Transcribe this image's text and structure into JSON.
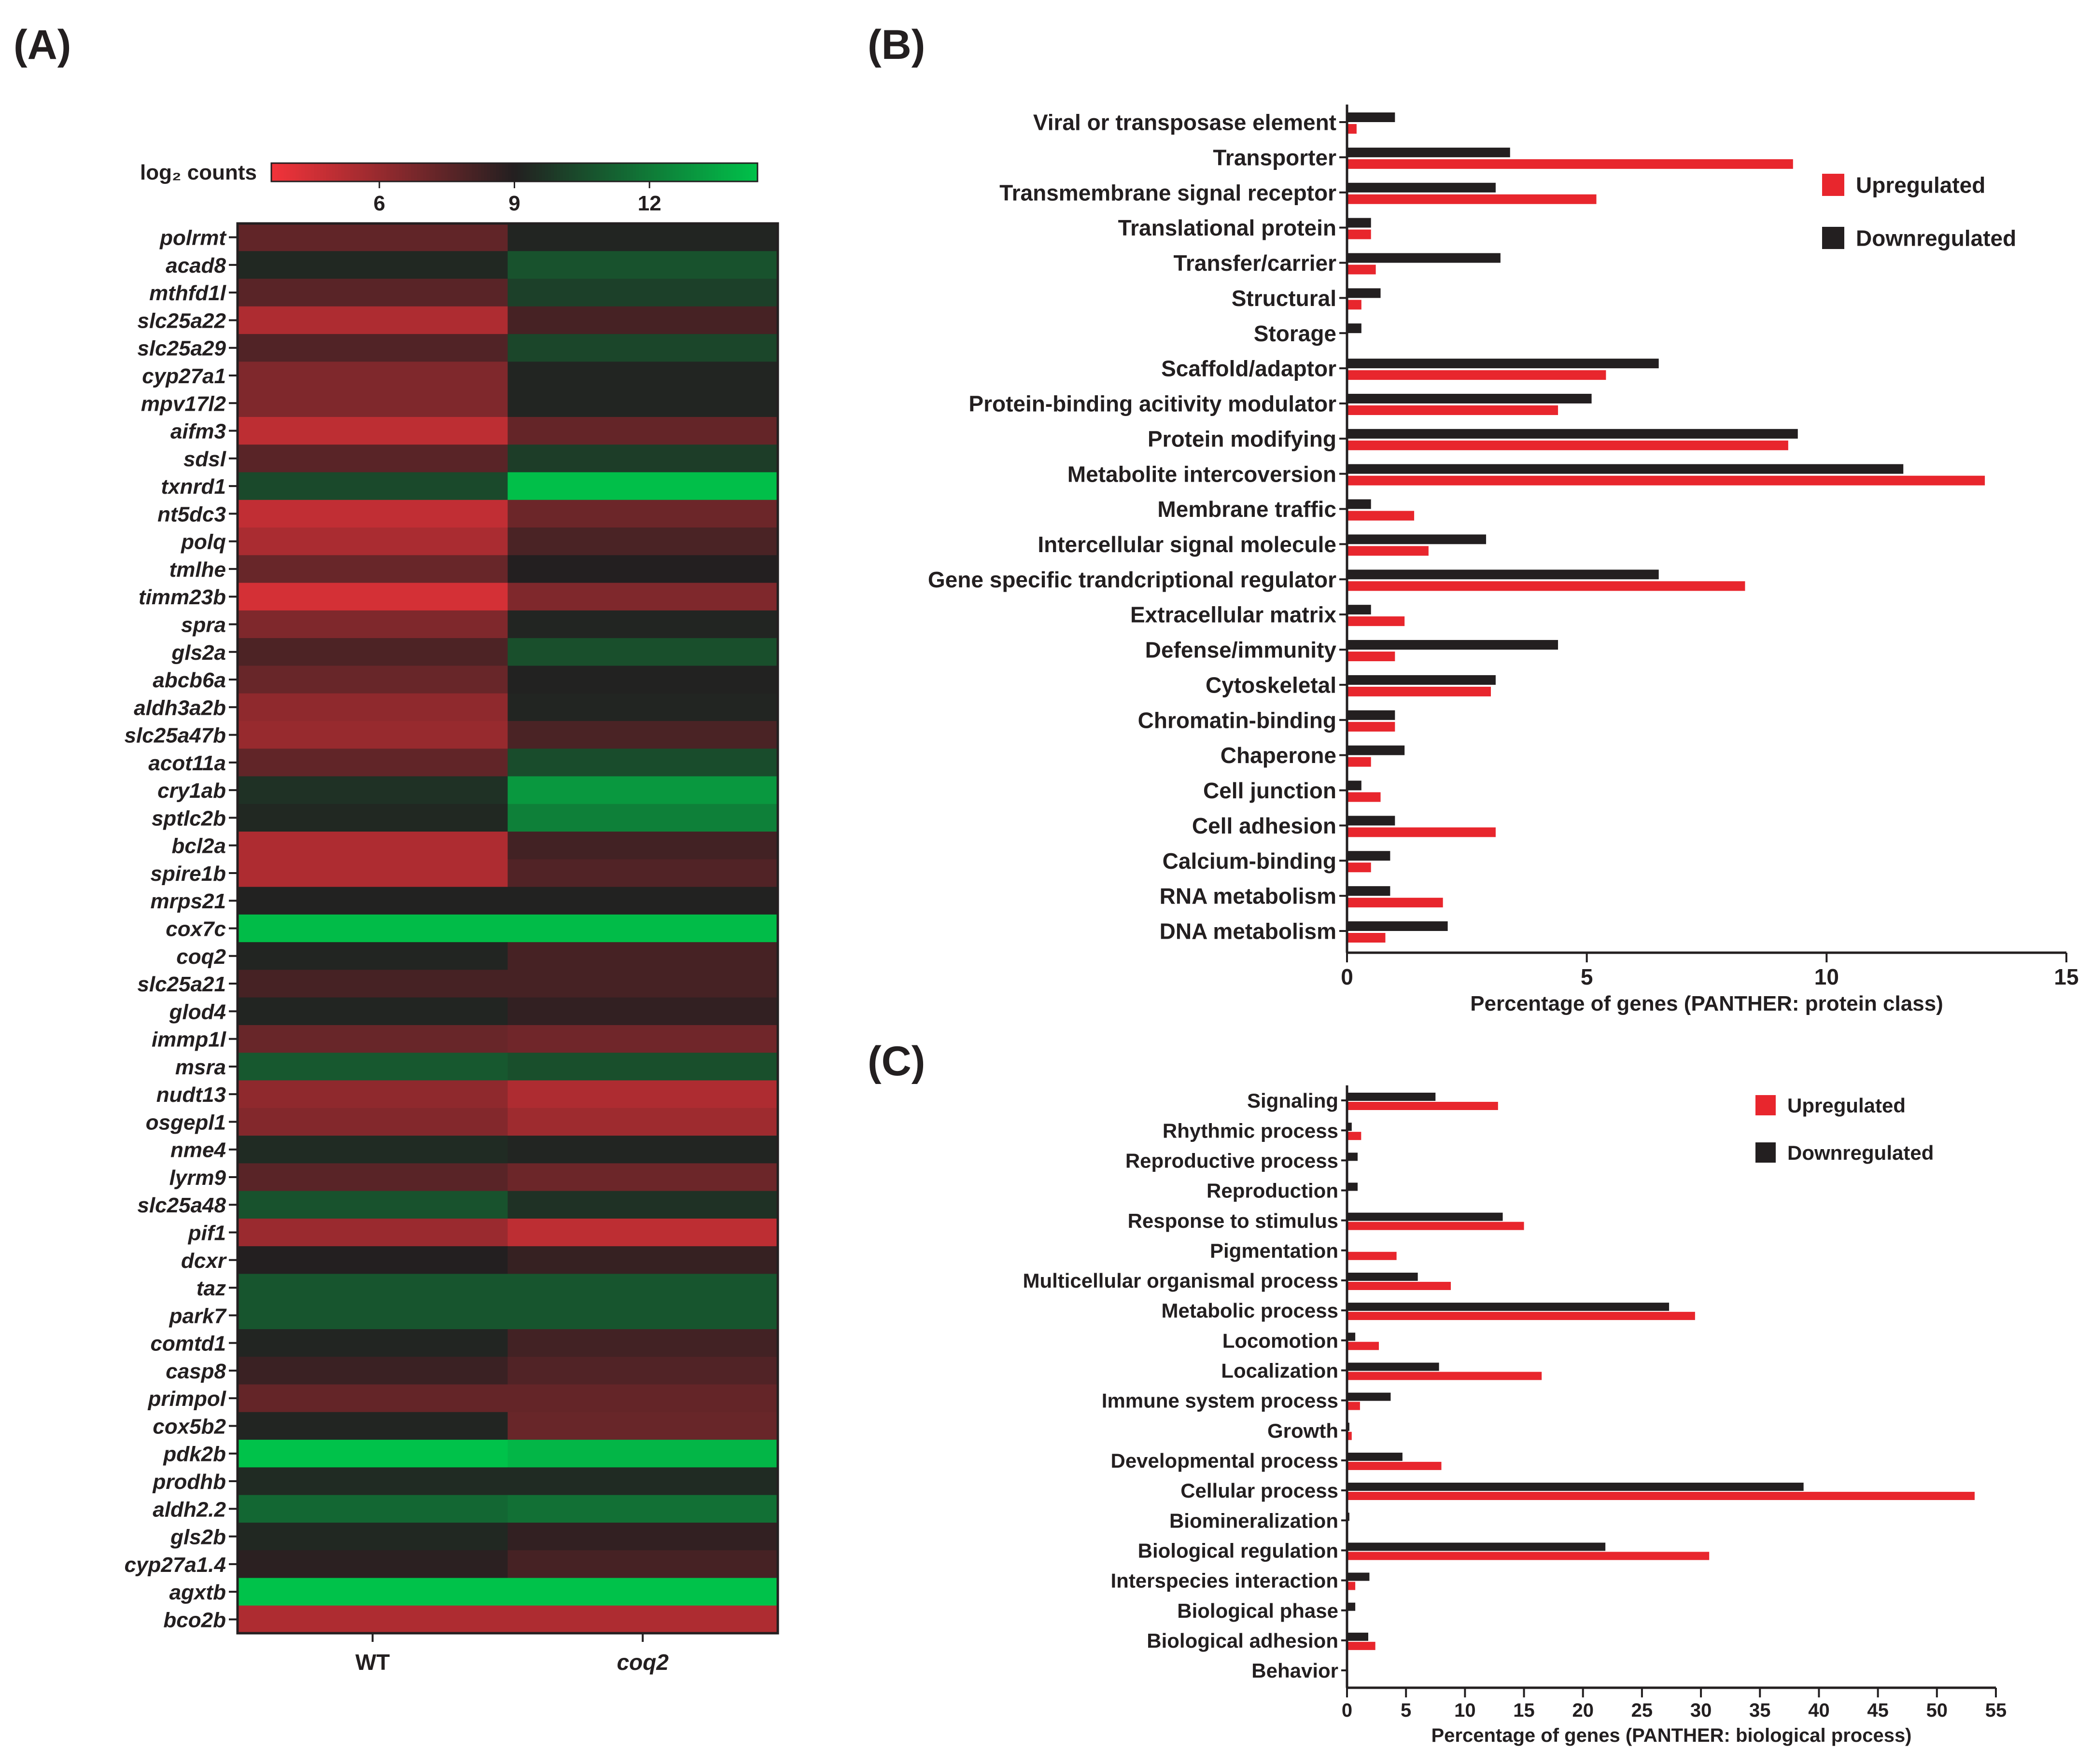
{
  "panel_labels": {
    "a": "(A)",
    "b": "(B)",
    "c": "(C)"
  },
  "colors": {
    "up": "#e8262d",
    "down": "#231f20",
    "axis": "#231f20",
    "low": "#f3333a",
    "mid": "#231f20",
    "high": "#00c24a"
  },
  "chart_data": [
    {
      "id": "A",
      "type": "heatmap",
      "colorbar_title": "log₂ counts",
      "colorbar_range": [
        3.6,
        14.4
      ],
      "colorbar_ticks": [
        "6",
        "9",
        "12"
      ],
      "colorbar_tick_values": [
        6,
        9,
        12
      ],
      "columns": [
        "WT",
        "coq2"
      ],
      "rows": [
        "polrmt",
        "acad8",
        "mthfd1l",
        "slc25a22",
        "slc25a29",
        "cyp27a1",
        "mpv17l2",
        "aifm3",
        "sdsl",
        "txnrd1",
        "nt5dc3",
        "polq",
        "tmlhe",
        "timm23b",
        "spra",
        "gls2a",
        "abcb6a",
        "aldh3a2b",
        "slc25a47b",
        "acot11a",
        "cry1ab",
        "sptlc2b",
        "bcl2a",
        "spire1b",
        "mrps21",
        "cox7c",
        "coq2",
        "slc25a21",
        "glod4",
        "immp1l",
        "msra",
        "nudt13",
        "osgepl1",
        "nme4",
        "lyrm9",
        "slc25a48",
        "pif1",
        "dcxr",
        "taz",
        "park7",
        "comtd1",
        "casp8",
        "primpol",
        "cox5b2",
        "pdk2b",
        "prodhb",
        "aldh2.2",
        "gls2b",
        "cyp27a1.4",
        "agxtb",
        "bco2b"
      ],
      "values": [
        [
          7.4,
          9.2
        ],
        [
          9.3,
          10.7
        ],
        [
          7.6,
          10.1
        ],
        [
          5.4,
          8.1
        ],
        [
          7.8,
          10.3
        ],
        [
          6.6,
          9.2
        ],
        [
          6.6,
          9.2
        ],
        [
          5.0,
          7.3
        ],
        [
          7.6,
          10.0
        ],
        [
          10.4,
          14.3
        ],
        [
          4.9,
          7.1
        ],
        [
          5.5,
          8.0
        ],
        [
          7.2,
          9.0
        ],
        [
          4.4,
          6.6
        ],
        [
          6.6,
          9.2
        ],
        [
          7.9,
          10.6
        ],
        [
          7.2,
          9.1
        ],
        [
          6.2,
          9.2
        ],
        [
          6.0,
          8.0
        ],
        [
          7.4,
          10.5
        ],
        [
          9.6,
          13.0
        ],
        [
          9.3,
          12.2
        ],
        [
          5.4,
          8.2
        ],
        [
          5.4,
          7.8
        ],
        [
          9.1,
          9.1
        ],
        [
          14.2,
          14.2
        ],
        [
          9.2,
          8.1
        ],
        [
          8.1,
          8.1
        ],
        [
          9.2,
          8.6
        ],
        [
          7.2,
          7.0
        ],
        [
          10.9,
          10.6
        ],
        [
          6.2,
          5.4
        ],
        [
          6.5,
          5.8
        ],
        [
          9.4,
          9.2
        ],
        [
          7.6,
          7.1
        ],
        [
          10.7,
          9.6
        ],
        [
          5.9,
          5.0
        ],
        [
          9.0,
          8.5
        ],
        [
          10.8,
          10.8
        ],
        [
          10.8,
          10.8
        ],
        [
          9.2,
          8.2
        ],
        [
          8.4,
          7.8
        ],
        [
          7.3,
          7.3
        ],
        [
          9.2,
          7.2
        ],
        [
          14.6,
          14.0
        ],
        [
          9.4,
          9.4
        ],
        [
          11.4,
          11.7
        ],
        [
          9.3,
          8.6
        ],
        [
          8.8,
          8.1
        ],
        [
          14.6,
          14.6
        ],
        [
          5.4,
          5.4
        ]
      ]
    },
    {
      "id": "B",
      "type": "bar",
      "orientation": "horizontal",
      "categories": [
        "Viral or transposase element",
        "Transporter",
        "Transmembrane signal receptor",
        "Translational protein",
        "Transfer/carrier",
        "Structural",
        "Storage",
        "Scaffold/adaptor",
        "Protein-binding acitivity modulator",
        "Protein modifying",
        "Metabolite intercoversion",
        "Membrane traffic",
        "Intercellular signal molecule",
        "Gene specific trandcriptional regulator",
        "Extracellular matrix",
        "Defense/immunity",
        "Cytoskeletal",
        "Chromatin-binding",
        "Chaperone",
        "Cell junction",
        "Cell adhesion",
        "Calcium-binding",
        "RNA metabolism",
        "DNA metabolism"
      ],
      "series": [
        {
          "name": "Upregulated",
          "values": [
            0.2,
            9.3,
            5.2,
            0.5,
            0.6,
            0.3,
            0,
            5.4,
            4.4,
            9.2,
            13.3,
            1.4,
            1.7,
            8.3,
            1.2,
            1.0,
            3.0,
            1.0,
            0.5,
            0.7,
            3.1,
            0.5,
            2.0,
            0.8
          ]
        },
        {
          "name": "Downregulated",
          "values": [
            1.0,
            3.4,
            3.1,
            0.5,
            3.2,
            0.7,
            0.3,
            6.5,
            5.1,
            9.4,
            11.6,
            0.5,
            2.9,
            6.5,
            0.5,
            4.4,
            3.1,
            1.0,
            1.2,
            0.3,
            1.0,
            0.9,
            0.9,
            2.1
          ]
        }
      ],
      "xlim": [
        0,
        15
      ],
      "xticks": [
        "0",
        "5",
        "10",
        "15"
      ],
      "xlabel": "Percentage of genes (PANTHER: protein class)",
      "legend": [
        "Upregulated",
        "Downregulated"
      ]
    },
    {
      "id": "C",
      "type": "bar",
      "orientation": "horizontal",
      "categories": [
        "Signaling",
        "Rhythmic process",
        "Reproductive process",
        "Reproduction",
        "Response to stimulus",
        "Pigmentation",
        "Multicellular organismal process",
        "Metabolic process",
        "Locomotion",
        "Localization",
        "Immune system process",
        "Growth",
        "Developmental process",
        "Cellular process",
        "Biomineralization",
        "Biological regulation",
        "Interspecies interaction",
        "Biological phase",
        "Biological adhesion",
        "Behavior"
      ],
      "series": [
        {
          "name": "Upregulated",
          "values": [
            12.8,
            1.2,
            0,
            0,
            15.0,
            4.2,
            8.8,
            29.5,
            2.7,
            16.5,
            1.1,
            0.4,
            8.0,
            53.2,
            0,
            30.7,
            0.7,
            0,
            2.4,
            0
          ]
        },
        {
          "name": "Downregulated",
          "values": [
            7.5,
            0.4,
            0.9,
            0.9,
            13.2,
            0,
            6.0,
            27.3,
            0.7,
            7.8,
            3.7,
            0.2,
            4.7,
            38.7,
            0.2,
            21.9,
            1.9,
            0.7,
            1.8,
            0
          ]
        }
      ],
      "xlim": [
        0,
        55
      ],
      "xticks": [
        "0",
        "5",
        "10",
        "15",
        "20",
        "25",
        "30",
        "35",
        "40",
        "45",
        "50",
        "55"
      ],
      "xlabel": "Percentage of genes (PANTHER: biological process)",
      "legend": [
        "Upregulated",
        "Downregulated"
      ]
    }
  ]
}
